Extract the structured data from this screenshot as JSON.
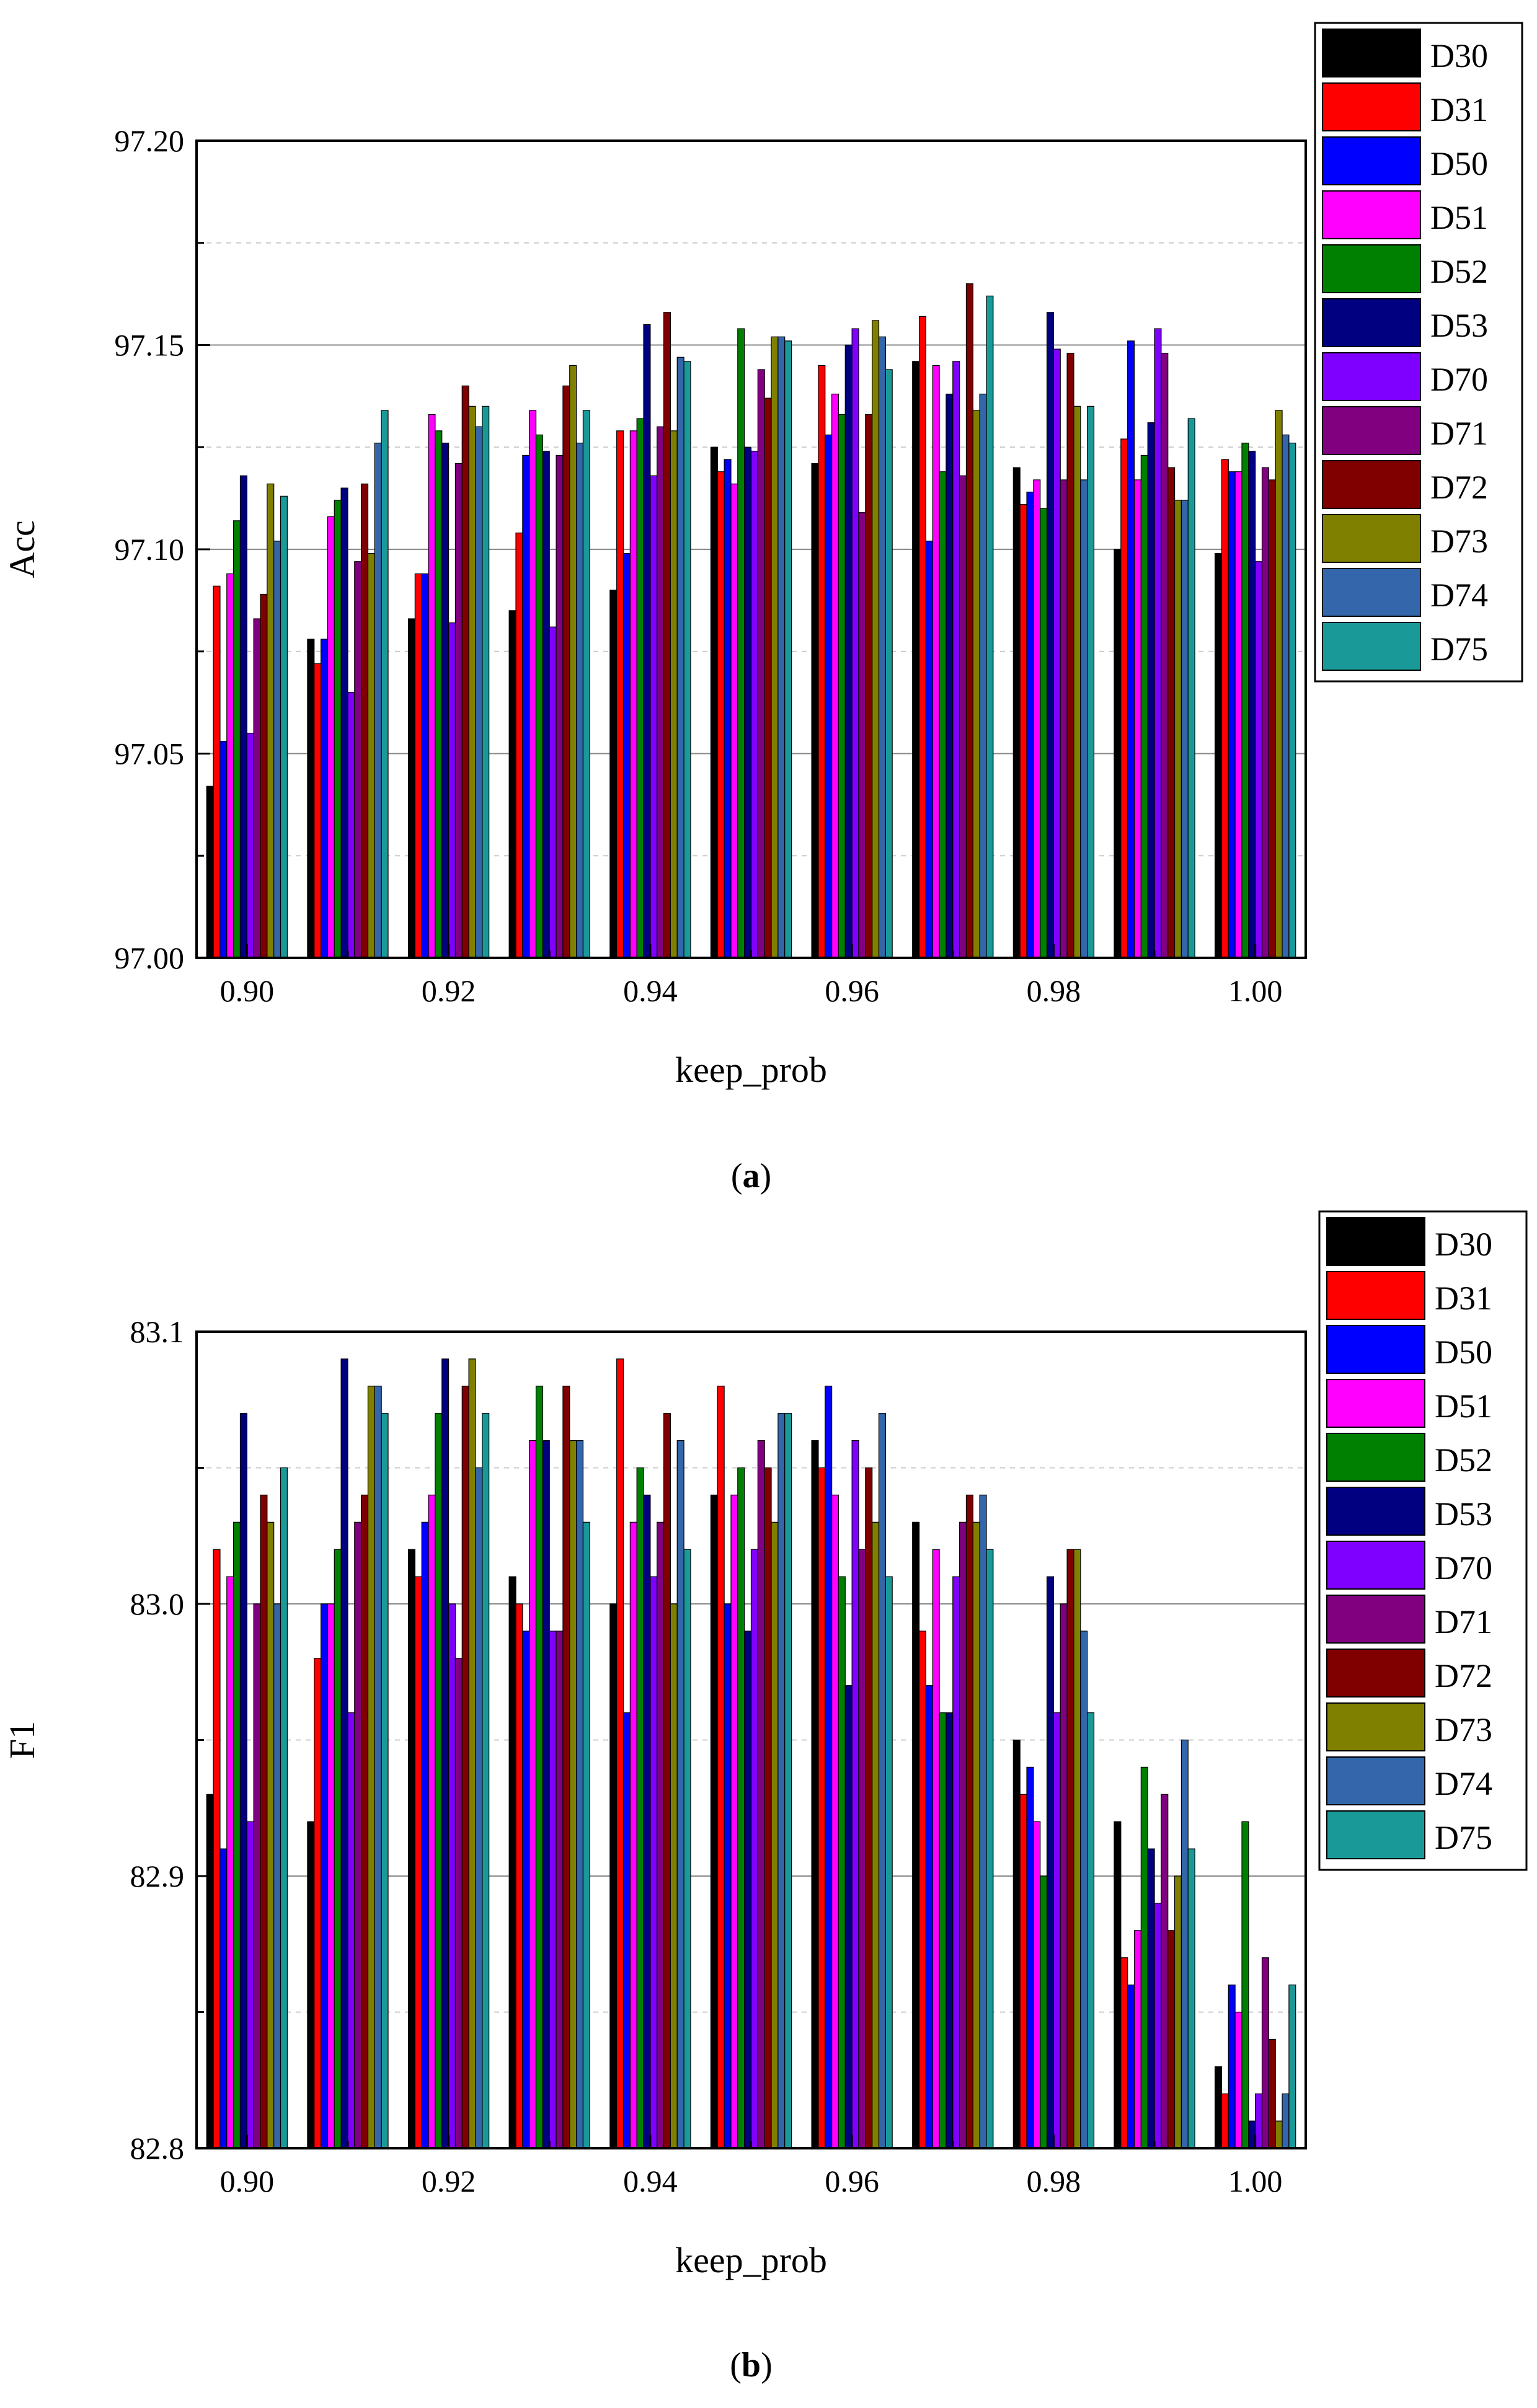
{
  "chart_data": [
    {
      "panel": "a",
      "caption_letter": "a",
      "type": "bar",
      "xlabel": "keep_prob",
      "ylabel": "Acc",
      "categories": [
        "0.90",
        "0.91",
        "0.92",
        "0.93",
        "0.94",
        "0.95",
        "0.96",
        "0.97",
        "0.98",
        "0.99",
        "1.00"
      ],
      "x_tick_labels": [
        "0.90",
        "0.92",
        "0.94",
        "0.96",
        "0.98",
        "1.00"
      ],
      "ylim": [
        97.0,
        97.2
      ],
      "y_ticks": [
        "97.00",
        "97.05",
        "97.10",
        "97.15",
        "97.20"
      ],
      "grid": true,
      "legend_position": "outside-top-right",
      "series": [
        {
          "name": "D30",
          "values": [
            97.042,
            97.078,
            97.083,
            97.085,
            97.09,
            97.125,
            97.121,
            97.146,
            97.12,
            97.1,
            97.099
          ]
        },
        {
          "name": "D31",
          "values": [
            97.091,
            97.072,
            97.094,
            97.104,
            97.129,
            97.119,
            97.145,
            97.157,
            97.111,
            97.127,
            97.122
          ]
        },
        {
          "name": "D50",
          "values": [
            97.053,
            97.078,
            97.094,
            97.123,
            97.099,
            97.122,
            97.128,
            97.102,
            97.114,
            97.151,
            97.119
          ]
        },
        {
          "name": "D51",
          "values": [
            97.094,
            97.108,
            97.133,
            97.134,
            97.129,
            97.116,
            97.138,
            97.145,
            97.117,
            97.117,
            97.119
          ]
        },
        {
          "name": "D52",
          "values": [
            97.107,
            97.112,
            97.129,
            97.128,
            97.132,
            97.154,
            97.133,
            97.119,
            97.11,
            97.123,
            97.126
          ]
        },
        {
          "name": "D53",
          "values": [
            97.118,
            97.115,
            97.126,
            97.124,
            97.155,
            97.125,
            97.15,
            97.138,
            97.158,
            97.131,
            97.124
          ]
        },
        {
          "name": "D70",
          "values": [
            97.055,
            97.065,
            97.082,
            97.081,
            97.118,
            97.124,
            97.154,
            97.146,
            97.149,
            97.154,
            97.097
          ]
        },
        {
          "name": "D71",
          "values": [
            97.083,
            97.097,
            97.121,
            97.123,
            97.13,
            97.144,
            97.109,
            97.118,
            97.117,
            97.148,
            97.12
          ]
        },
        {
          "name": "D72",
          "values": [
            97.089,
            97.116,
            97.14,
            97.14,
            97.158,
            97.137,
            97.133,
            97.165,
            97.148,
            97.12,
            97.117
          ]
        },
        {
          "name": "D73",
          "values": [
            97.116,
            97.099,
            97.135,
            97.145,
            97.129,
            97.152,
            97.156,
            97.134,
            97.135,
            97.112,
            97.134
          ]
        },
        {
          "name": "D74",
          "values": [
            97.102,
            97.126,
            97.13,
            97.126,
            97.147,
            97.152,
            97.152,
            97.138,
            97.117,
            97.112,
            97.128
          ]
        },
        {
          "name": "D75",
          "values": [
            97.113,
            97.134,
            97.135,
            97.134,
            97.146,
            97.151,
            97.144,
            97.162,
            97.135,
            97.132,
            97.126
          ]
        }
      ]
    },
    {
      "panel": "b",
      "caption_letter": "b",
      "type": "bar",
      "xlabel": "keep_prob",
      "ylabel": "F1",
      "categories": [
        "0.90",
        "0.91",
        "0.92",
        "0.93",
        "0.94",
        "0.95",
        "0.96",
        "0.97",
        "0.98",
        "0.99",
        "1.00"
      ],
      "x_tick_labels": [
        "0.90",
        "0.92",
        "0.94",
        "0.96",
        "0.98",
        "1.00"
      ],
      "ylim": [
        82.8,
        83.1
      ],
      "y_ticks": [
        "82.8",
        "82.9",
        "83.0",
        "83.1"
      ],
      "grid": true,
      "legend_position": "outside-top-right",
      "series": [
        {
          "name": "D30",
          "values": [
            82.93,
            82.92,
            83.02,
            83.01,
            83.0,
            83.04,
            83.06,
            83.03,
            82.95,
            82.92,
            82.83
          ]
        },
        {
          "name": "D31",
          "values": [
            83.02,
            82.98,
            83.01,
            83.0,
            83.09,
            83.08,
            83.05,
            82.99,
            82.93,
            82.87,
            82.82
          ]
        },
        {
          "name": "D50",
          "values": [
            82.91,
            83.0,
            83.03,
            82.99,
            82.96,
            83.0,
            83.08,
            82.97,
            82.94,
            82.86,
            82.86
          ]
        },
        {
          "name": "D51",
          "values": [
            83.01,
            83.0,
            83.04,
            83.06,
            83.03,
            83.04,
            83.04,
            83.02,
            82.92,
            82.88,
            82.85
          ]
        },
        {
          "name": "D52",
          "values": [
            83.03,
            83.02,
            83.07,
            83.08,
            83.05,
            83.05,
            83.01,
            82.96,
            82.9,
            82.94,
            82.92
          ]
        },
        {
          "name": "D53",
          "values": [
            83.07,
            83.09,
            83.09,
            83.06,
            83.04,
            82.99,
            82.97,
            82.96,
            83.01,
            82.91,
            82.81
          ]
        },
        {
          "name": "D70",
          "values": [
            82.92,
            82.96,
            83.0,
            82.99,
            83.01,
            83.02,
            83.06,
            83.01,
            82.96,
            82.89,
            82.82
          ]
        },
        {
          "name": "D71",
          "values": [
            83.0,
            83.03,
            82.98,
            82.99,
            83.03,
            83.06,
            83.02,
            83.03,
            83.0,
            82.93,
            82.87
          ]
        },
        {
          "name": "D72",
          "values": [
            83.04,
            83.04,
            83.08,
            83.08,
            83.07,
            83.05,
            83.05,
            83.04,
            83.02,
            82.88,
            82.84
          ]
        },
        {
          "name": "D73",
          "values": [
            83.03,
            83.08,
            83.09,
            83.06,
            83.0,
            83.03,
            83.03,
            83.03,
            83.02,
            82.9,
            82.81
          ]
        },
        {
          "name": "D74",
          "values": [
            83.0,
            83.08,
            83.05,
            83.06,
            83.06,
            83.07,
            83.07,
            83.04,
            82.99,
            82.95,
            82.82
          ]
        },
        {
          "name": "D75",
          "values": [
            83.05,
            83.07,
            83.07,
            83.03,
            83.02,
            83.07,
            83.01,
            83.02,
            82.96,
            82.91,
            82.86
          ]
        }
      ]
    }
  ],
  "series_colors": {
    "D30": "#000000",
    "D31": "#ff0000",
    "D50": "#0000ff",
    "D51": "#ff00ff",
    "D52": "#008000",
    "D53": "#000080",
    "D70": "#8000ff",
    "D71": "#800080",
    "D72": "#800000",
    "D73": "#808000",
    "D74": "#3366aa",
    "D75": "#1a9999"
  }
}
